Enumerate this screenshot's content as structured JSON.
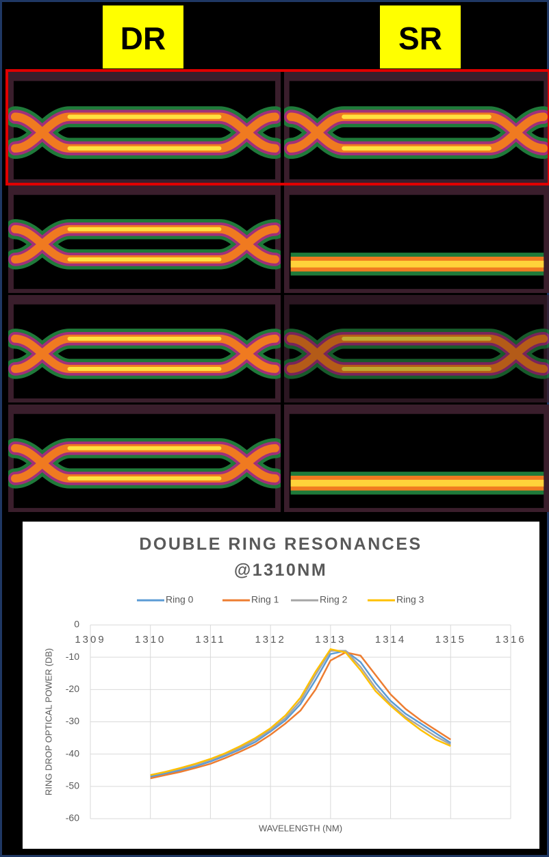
{
  "labels": {
    "left": "DR",
    "right": "SR"
  },
  "chart_data": {
    "type": "line",
    "title": "DOUBLE RING RESONANCES @1310NM",
    "x_label": "WAVELENGTH (NM)",
    "y_label": "RING DROP OPTICAL POWER (DB)",
    "x": [
      1310,
      1310.25,
      1310.5,
      1310.75,
      1311,
      1311.25,
      1311.5,
      1311.75,
      1312,
      1312.25,
      1312.5,
      1312.75,
      1313,
      1313.25,
      1313.5,
      1313.75,
      1314,
      1314.25,
      1314.5,
      1314.75,
      1315
    ],
    "series": [
      {
        "name": "Ring 0",
        "color": "#5b9bd5",
        "values": [
          -47,
          -46,
          -45,
          -43.8,
          -42.3,
          -40.5,
          -38.5,
          -36.2,
          -33,
          -29.5,
          -24.5,
          -17,
          -9,
          -8,
          -11.5,
          -18,
          -23.5,
          -27.5,
          -30.5,
          -33.5,
          -36.5
        ]
      },
      {
        "name": "Ring 1",
        "color": "#ed7d31",
        "values": [
          -47.5,
          -46.5,
          -45.5,
          -44.3,
          -43,
          -41.2,
          -39.2,
          -37,
          -34,
          -30.5,
          -26.5,
          -20,
          -11,
          -8.5,
          -9.5,
          -15.5,
          -21.5,
          -26,
          -29.5,
          -32.5,
          -35.5
        ]
      },
      {
        "name": "Ring 2",
        "color": "#a5a5a5",
        "values": [
          -46.5,
          -45.5,
          -44.5,
          -43.2,
          -41.8,
          -40,
          -38,
          -35.5,
          -32.5,
          -28.8,
          -23.5,
          -15.5,
          -8,
          -8,
          -13,
          -19.5,
          -24.5,
          -28.5,
          -31.5,
          -34.5,
          -37
        ]
      },
      {
        "name": "Ring 3",
        "color": "#ffc000",
        "values": [
          -46.5,
          -45.5,
          -44.3,
          -43,
          -41.5,
          -39.7,
          -37.5,
          -35,
          -32,
          -28,
          -22.5,
          -14.5,
          -7.5,
          -8.5,
          -14,
          -20.5,
          -25,
          -29,
          -32.5,
          -35.5,
          -37.5
        ]
      }
    ],
    "xlim": [
      1309,
      1316
    ],
    "xticks": [
      1309,
      1310,
      1311,
      1312,
      1313,
      1314,
      1315,
      1316
    ],
    "ylim": [
      -60,
      0
    ],
    "yticks": [
      0,
      -10,
      -20,
      -30,
      -40,
      -50,
      -60
    ],
    "grid": true,
    "legend": "top"
  }
}
